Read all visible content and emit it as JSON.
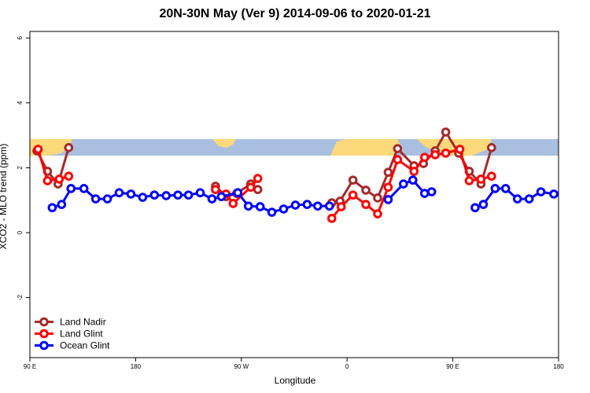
{
  "chart_data": {
    "type": "line",
    "title": "20N-30N May (Ver 9)   2014-09-06 to 2020-01-21",
    "x_label": "Longitude",
    "y_label": "XCO2 - MLO trend (ppm)",
    "xlim": [
      90,
      540
    ],
    "ylim": [
      -3.85,
      6.2
    ],
    "xticks": [
      {
        "value": 90,
        "label": "90 E"
      },
      180,
      {
        "value": 270,
        "label": "90 W"
      },
      {
        "value": 360,
        "label": "0"
      },
      {
        "value": 450,
        "label": "90 E"
      },
      {
        "value": 540,
        "label": "180"
      }
    ],
    "yticks": [
      -2,
      0,
      2,
      4,
      6
    ],
    "legend": "bottomleft",
    "series": [
      {
        "name": "Land Nadir",
        "color": "#a52a2a",
        "x": [
          96,
          105,
          114,
          123,
          null,
          248,
          257,
          266,
          278,
          284,
          null,
          347,
          354,
          365,
          376,
          386,
          395,
          403,
          417,
          425,
          435,
          444,
          455,
          464,
          474,
          483
        ],
        "values": [
          2.52,
          1.89,
          1.5,
          2.62,
          null,
          1.43,
          1.11,
          1.21,
          1.5,
          1.33,
          null,
          0.92,
          0.97,
          1.62,
          1.31,
          1.07,
          1.86,
          2.59,
          2.06,
          2.13,
          2.52,
          3.1,
          2.45,
          1.89,
          1.5,
          2.62
        ]
      },
      {
        "name": "Land Glint",
        "color": "#ff0000",
        "x": [
          97,
          105,
          115,
          123,
          null,
          248,
          257,
          263,
          278,
          284,
          null,
          347,
          355,
          365,
          376,
          386,
          395,
          403,
          417,
          426,
          435,
          444,
          456,
          464,
          474,
          483
        ],
        "values": [
          2.57,
          1.6,
          1.65,
          1.74,
          null,
          1.33,
          1.19,
          0.9,
          1.4,
          1.67,
          null,
          0.44,
          0.8,
          1.16,
          0.87,
          0.58,
          1.4,
          2.25,
          1.89,
          2.32,
          2.4,
          2.45,
          2.57,
          1.6,
          1.65,
          1.74
        ]
      },
      {
        "name": "Ocean Glint",
        "color": "#0000ff",
        "x": [
          109,
          117,
          125,
          136,
          146,
          156,
          166,
          176,
          186,
          196,
          206,
          216,
          225,
          235,
          245,
          253,
          267,
          276,
          286,
          296,
          306,
          316,
          326,
          335,
          345,
          null,
          395,
          408,
          416,
          426,
          432,
          null,
          469,
          476,
          486,
          495,
          505,
          515,
          525,
          536
        ],
        "values": [
          0.77,
          0.87,
          1.36,
          1.36,
          1.04,
          1.04,
          1.23,
          1.19,
          1.09,
          1.16,
          1.14,
          1.16,
          1.16,
          1.23,
          1.04,
          1.11,
          1.23,
          0.82,
          0.8,
          0.63,
          0.73,
          0.85,
          0.87,
          0.82,
          0.82,
          null,
          1.02,
          1.5,
          1.62,
          1.21,
          1.26,
          null,
          0.77,
          0.87,
          1.36,
          1.36,
          1.04,
          1.04,
          1.26,
          1.19
        ]
      }
    ]
  }
}
